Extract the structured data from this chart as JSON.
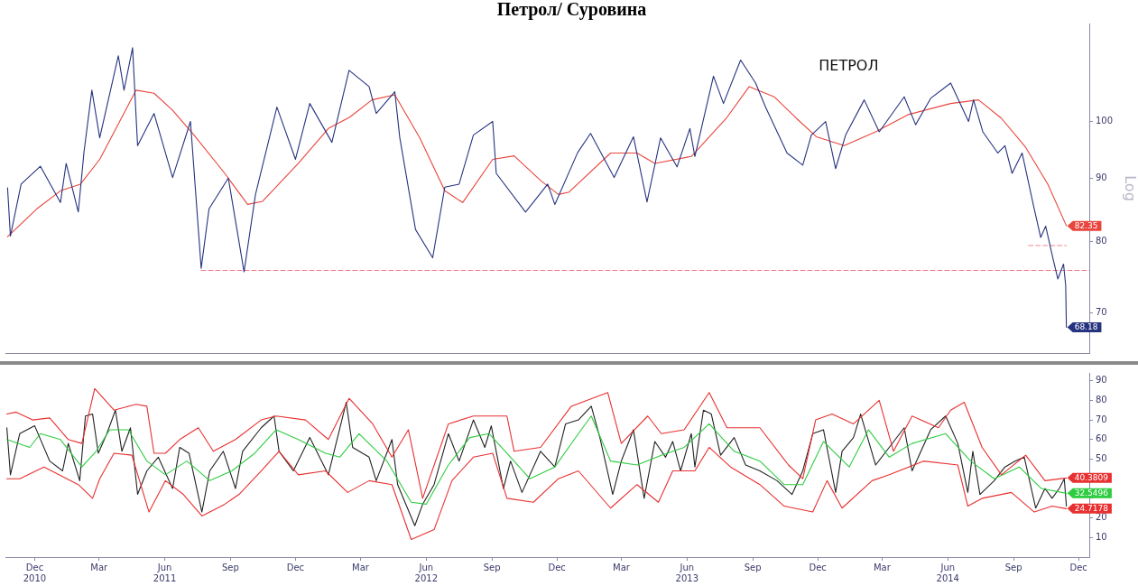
{
  "chart_data": [
    {
      "type": "line",
      "title": "Петрол/ Суровина",
      "ylabel": "Log",
      "log": true,
      "grid": false,
      "marker": "none",
      "tick_labels": "y",
      "xlim": [
        "2010-11-04",
        "2014-12-30"
      ],
      "ylim": [
        65,
        120
      ],
      "yticks": [
        70,
        80,
        90,
        100
      ],
      "annotations": [
        "ПЕТРОЛ"
      ],
      "series": [
        {
          "color": "#26337f",
          "x": [
            "2010-11-07",
            "2010-11-11",
            "2010-11-26",
            "2010-12-23",
            "2011-01-20",
            "2011-01-28",
            "2011-02-14",
            "2011-02-22",
            "2011-03-05",
            "2011-03-16",
            "2011-04-11",
            "2011-04-19",
            "2011-05-01",
            "2011-05-08",
            "2011-05-31",
            "2011-06-26",
            "2011-07-21",
            "2011-08-05",
            "2011-08-16",
            "2011-09-12",
            "2011-10-04",
            "2011-10-20",
            "2011-11-19",
            "2011-12-15",
            "2012-01-04",
            "2012-02-04",
            "2012-02-28",
            "2012-03-27",
            "2012-04-06",
            "2012-05-02",
            "2012-05-09",
            "2012-05-31",
            "2012-06-24",
            "2012-07-11",
            "2012-07-31",
            "2012-08-20",
            "2012-09-16",
            "2012-09-21",
            "2012-11-01",
            "2012-12-02",
            "2012-12-12",
            "2013-01-13",
            "2013-01-31",
            "2013-03-05",
            "2013-04-01",
            "2013-04-20",
            "2013-05-09",
            "2013-06-01",
            "2013-06-19",
            "2013-06-26",
            "2013-07-22",
            "2013-08-05",
            "2013-08-29",
            "2013-09-19",
            "2013-10-03",
            "2013-11-02",
            "2013-11-24",
            "2013-12-06",
            "2013-12-26",
            "2014-01-09",
            "2014-01-23",
            "2014-02-18",
            "2014-03-11",
            "2014-04-15",
            "2014-05-01",
            "2014-05-22",
            "2014-06-19",
            "2014-07-14",
            "2014-07-21",
            "2014-08-03",
            "2014-08-24",
            "2014-09-03",
            "2014-09-13",
            "2014-09-27",
            "2014-10-13",
            "2014-10-23",
            "2014-10-30",
            "2014-11-09",
            "2014-11-16",
            "2014-11-24",
            "2014-11-27",
            "2014-11-28"
          ],
          "values": [
            88.4,
            80.8,
            89,
            92,
            86,
            92.5,
            84.5,
            94.5,
            106,
            97,
            113,
            106,
            114.7,
            95.6,
            101.5,
            90.1,
            100,
            76.1,
            85,
            90,
            75.6,
            87.3,
            102.7,
            93.2,
            103.4,
            96.2,
            110,
            106.7,
            101.5,
            105.7,
            97,
            81.8,
            77.6,
            88.5,
            89,
            97.5,
            100,
            90.8,
            84.5,
            89,
            85.7,
            94.4,
            97.8,
            90.1,
            97.2,
            86.1,
            97,
            91.9,
            98.7,
            93.7,
            108.8,
            103.4,
            112.1,
            107.4,
            102.7,
            94.3,
            92.2,
            97.5,
            100,
            91.6,
            97.5,
            104.1,
            98.1,
            104.7,
            99.4,
            104.4,
            107.4,
            100,
            104.1,
            98.1,
            94.3,
            95.6,
            90.8,
            94.3,
            85.5,
            80.6,
            82.3,
            77.6,
            74.6,
            76.7,
            73.7,
            68.18
          ],
          "value_labels": [
            null,
            null,
            null,
            null,
            null,
            null,
            null,
            null,
            null,
            null,
            null,
            null,
            null,
            null,
            null,
            null,
            null,
            null,
            null,
            null,
            null,
            null,
            null,
            null,
            null,
            null,
            null,
            null,
            null,
            null,
            null,
            null,
            null,
            null,
            null,
            null,
            null,
            null,
            null,
            null,
            null,
            null,
            null,
            null,
            null,
            null,
            null,
            null,
            null,
            null,
            null,
            null,
            null,
            null,
            null,
            null,
            null,
            null,
            null,
            null,
            null,
            null,
            null,
            null,
            null,
            null,
            null,
            null,
            null,
            null,
            null,
            null,
            null,
            null,
            null,
            null,
            null,
            null,
            null,
            null,
            null,
            "68.18"
          ]
        },
        {
          "color": "#e8453c",
          "x": [
            "2010-11-07",
            "2010-12-18",
            "2011-01-20",
            "2011-02-17",
            "2011-03-16",
            "2011-05-06",
            "2011-05-31",
            "2011-06-26",
            "2011-07-26",
            "2011-09-07",
            "2011-10-09",
            "2011-10-30",
            "2011-12-19",
            "2012-01-30",
            "2012-02-29",
            "2012-03-31",
            "2012-05-02",
            "2012-06-06",
            "2012-07-11",
            "2012-08-05",
            "2012-09-16",
            "2012-10-16",
            "2012-11-22",
            "2012-12-17",
            "2013-01-01",
            "2013-02-28",
            "2013-04-06",
            "2013-05-01",
            "2013-06-21",
            "2013-08-09",
            "2013-09-10",
            "2013-10-15",
            "2013-11-15",
            "2013-12-13",
            "2014-01-21",
            "2014-03-06",
            "2014-04-21",
            "2014-06-19",
            "2014-07-28",
            "2014-08-29",
            "2014-10-02",
            "2014-11-02",
            "2014-11-28"
          ],
          "values": [
            80.7,
            85,
            87.9,
            89,
            93.2,
            106,
            105.4,
            102.1,
            97.5,
            90.8,
            85.7,
            86.2,
            92.5,
            98.7,
            100.8,
            104.1,
            105.1,
            97,
            87.9,
            86,
            93.2,
            93.8,
            89.6,
            87.3,
            87.7,
            94.3,
            94.3,
            92.5,
            93.7,
            100.6,
            106.7,
            104.7,
            100.6,
            97.2,
            95.6,
            98.1,
            101.3,
            103.4,
            104.1,
            100.6,
            95.3,
            89,
            82.35
          ],
          "value_labels": [
            null,
            null,
            null,
            null,
            null,
            null,
            null,
            null,
            null,
            null,
            null,
            null,
            null,
            null,
            null,
            null,
            null,
            null,
            null,
            null,
            null,
            null,
            null,
            null,
            null,
            null,
            null,
            null,
            null,
            null,
            null,
            null,
            null,
            null,
            null,
            null,
            null,
            null,
            null,
            null,
            null,
            null,
            "82.35"
          ]
        },
        {
          "color": "#f07a8a",
          "line_style": "dashed",
          "x": [
            "2011-08-05",
            "2014-12-30"
          ],
          "values": [
            75.8,
            75.8
          ]
        },
        {
          "color": "#f5a0a8",
          "line_style": "dashed",
          "x": [
            "2014-10-06",
            "2014-11-28"
          ],
          "values": [
            79.4,
            79.4
          ]
        }
      ]
    },
    {
      "type": "line",
      "grid": false,
      "marker": "none",
      "xlim": [
        "2010-11-04",
        "2014-12-30"
      ],
      "ylim": [
        0,
        94
      ],
      "yticks": [
        10,
        20,
        {
          "value": 30,
          "label": null
        },
        {
          "value": 40,
          "label": null
        },
        50,
        60,
        70,
        80,
        90
      ],
      "xticks": [
        {
          "value": "2010-12-15",
          "label": "Dec\n2010"
        },
        {
          "value": "2011-03-15",
          "label": "Mar"
        },
        {
          "value": "2011-06-15",
          "label": "Jun\n2011"
        },
        {
          "value": "2011-09-15",
          "label": "Sep"
        },
        {
          "value": "2011-12-15",
          "label": "Dec"
        },
        {
          "value": "2012-03-15",
          "label": "Mar"
        },
        {
          "value": "2012-06-15",
          "label": "Jun\n2012"
        },
        {
          "value": "2012-09-15",
          "label": "Sep"
        },
        {
          "value": "2012-12-15",
          "label": "Dec"
        },
        {
          "value": "2013-03-15",
          "label": "Mar"
        },
        {
          "value": "2013-06-15",
          "label": "Jun\n2013"
        },
        {
          "value": "2013-09-15",
          "label": "Sep"
        },
        {
          "value": "2013-12-15",
          "label": "Dec"
        },
        {
          "value": "2014-03-15",
          "label": "Mar"
        },
        {
          "value": "2014-06-15",
          "label": "Jun\n2014"
        },
        {
          "value": "2014-09-15",
          "label": "Sep"
        },
        {
          "value": "2014-12-15",
          "label": "Dec"
        }
      ],
      "series": [
        {
          "color": "#e83030",
          "x": [
            "2010-11-06",
            "2010-11-19",
            "2010-12-12",
            "2011-01-05",
            "2011-01-31",
            "2011-02-19",
            "2011-03-09",
            "2011-04-05",
            "2011-05-06",
            "2011-05-21",
            "2011-05-31",
            "2011-06-16",
            "2011-07-06",
            "2011-08-01",
            "2011-08-22",
            "2011-09-22",
            "2011-10-28",
            "2011-11-18",
            "2011-12-29",
            "2012-01-30",
            "2012-02-28",
            "2012-04-01",
            "2012-04-28",
            "2012-05-21",
            "2012-06-10",
            "2012-07-16",
            "2012-08-20",
            "2012-10-06",
            "2012-10-16",
            "2012-11-22",
            "2013-01-04",
            "2013-02-24",
            "2013-03-15",
            "2013-04-21",
            "2013-05-10",
            "2013-06-11",
            "2013-07-16",
            "2013-08-10",
            "2013-09-25",
            "2013-11-04",
            "2013-11-24",
            "2013-12-12",
            "2014-01-04",
            "2014-02-03",
            "2014-03-11",
            "2014-03-31",
            "2014-04-26",
            "2014-06-02",
            "2014-06-19",
            "2014-07-08",
            "2014-08-02",
            "2014-08-29",
            "2014-10-02",
            "2014-10-29",
            "2014-11-28"
          ],
          "values": [
            73,
            74,
            70,
            71,
            60,
            58,
            86,
            75,
            78,
            77,
            53,
            53,
            60,
            66,
            54,
            60,
            70,
            72,
            70,
            60,
            81,
            68,
            51,
            65,
            30,
            68,
            72,
            72,
            54,
            56,
            77,
            84,
            58,
            72,
            63,
            65,
            84,
            66,
            66,
            47,
            40,
            70,
            73,
            68,
            80,
            54,
            72,
            66,
            75,
            79,
            56,
            42,
            52,
            39,
            40.3809
          ],
          "value_labels": [
            null,
            null,
            null,
            null,
            null,
            null,
            null,
            null,
            null,
            null,
            null,
            null,
            null,
            null,
            null,
            null,
            null,
            null,
            null,
            null,
            null,
            null,
            null,
            null,
            null,
            null,
            null,
            null,
            null,
            null,
            null,
            null,
            null,
            null,
            null,
            null,
            null,
            null,
            null,
            null,
            null,
            null,
            null,
            null,
            null,
            null,
            null,
            null,
            null,
            null,
            null,
            null,
            null,
            null,
            "40.3809"
          ]
        },
        {
          "color": "#e83030",
          "x": [
            "2010-11-06",
            "2010-11-24",
            "2010-12-28",
            "2011-02-14",
            "2011-03-06",
            "2011-03-16",
            "2011-04-05",
            "2011-04-30",
            "2011-05-24",
            "2011-06-16",
            "2011-07-11",
            "2011-08-06",
            "2011-09-07",
            "2011-09-27",
            "2011-10-28",
            "2011-11-22",
            "2011-12-19",
            "2012-01-26",
            "2012-02-26",
            "2012-03-27",
            "2012-04-28",
            "2012-05-25",
            "2012-06-26",
            "2012-07-21",
            "2012-08-20",
            "2012-09-16",
            "2012-10-06",
            "2012-11-12",
            "2012-12-17",
            "2013-01-14",
            "2013-02-28",
            "2013-04-06",
            "2013-05-06",
            "2013-05-26",
            "2013-06-26",
            "2013-07-16",
            "2013-08-15",
            "2013-09-25",
            "2013-10-29",
            "2013-12-08",
            "2013-12-28",
            "2014-01-18",
            "2014-03-01",
            "2014-03-25",
            "2014-05-12",
            "2014-06-29",
            "2014-07-13",
            "2014-08-02",
            "2014-09-12",
            "2014-10-14",
            "2014-11-08",
            "2014-11-28"
          ],
          "values": [
            40,
            40,
            46,
            37,
            30,
            40,
            53,
            52,
            23,
            39,
            32,
            21,
            27,
            32,
            44,
            54,
            42,
            44,
            33,
            39,
            37,
            9,
            14,
            39,
            51,
            53,
            30,
            28,
            40,
            44,
            25,
            37,
            28,
            44,
            44,
            56,
            46,
            37,
            26,
            23,
            39,
            25,
            39,
            42,
            49,
            47,
            26,
            30,
            33,
            23,
            26,
            24.7178
          ],
          "value_labels": [
            null,
            null,
            null,
            null,
            null,
            null,
            null,
            null,
            null,
            null,
            null,
            null,
            null,
            null,
            null,
            null,
            null,
            null,
            null,
            null,
            null,
            null,
            null,
            null,
            null,
            null,
            null,
            null,
            null,
            null,
            null,
            null,
            null,
            null,
            null,
            null,
            null,
            null,
            null,
            null,
            null,
            null,
            null,
            null,
            null,
            null,
            null,
            null,
            null,
            null,
            null,
            "24.7178"
          ]
        },
        {
          "color": "#2ecc40",
          "x": [
            "2010-11-06",
            "2010-12-08",
            "2010-12-23",
            "2011-01-20",
            "2011-02-19",
            "2011-03-11",
            "2011-03-30",
            "2011-04-25",
            "2011-05-21",
            "2011-06-16",
            "2011-07-16",
            "2011-08-17",
            "2011-09-17",
            "2011-10-19",
            "2011-11-18",
            "2011-12-19",
            "2012-01-26",
            "2012-02-15",
            "2012-03-13",
            "2012-04-21",
            "2012-05-25",
            "2012-06-15",
            "2012-07-16",
            "2012-08-15",
            "2012-09-11",
            "2012-10-11",
            "2012-11-07",
            "2012-12-12",
            "2013-01-14",
            "2013-02-01",
            "2013-02-28",
            "2013-04-06",
            "2013-05-10",
            "2013-06-11",
            "2013-07-16",
            "2013-08-20",
            "2013-09-25",
            "2013-10-29",
            "2013-11-24",
            "2013-12-23",
            "2014-01-28",
            "2014-02-24",
            "2014-03-25",
            "2014-04-26",
            "2014-06-12",
            "2014-07-17",
            "2014-08-19",
            "2014-09-23",
            "2014-10-24",
            "2014-11-28"
          ],
          "values": [
            60,
            56,
            63,
            60,
            46,
            54,
            65,
            65,
            49,
            42,
            49,
            39,
            44,
            53,
            65,
            60,
            53,
            51,
            63,
            49,
            28,
            27,
            47,
            61,
            63,
            51,
            40,
            46,
            63,
            72,
            49,
            47,
            52,
            56,
            68,
            54,
            49,
            37,
            37,
            59,
            46,
            65,
            51,
            58,
            63,
            49,
            40,
            46,
            35,
            32.5496
          ],
          "value_labels": [
            null,
            null,
            null,
            null,
            null,
            null,
            null,
            null,
            null,
            null,
            null,
            null,
            null,
            null,
            null,
            null,
            null,
            null,
            null,
            null,
            null,
            null,
            null,
            null,
            null,
            null,
            null,
            null,
            null,
            null,
            null,
            null,
            null,
            null,
            null,
            null,
            null,
            null,
            null,
            null,
            null,
            null,
            null,
            null,
            null,
            null,
            null,
            null,
            null,
            "32.5496"
          ]
        },
        {
          "color": "#222222",
          "x": [
            "2010-11-06",
            "2010-11-11",
            "2010-11-24",
            "2010-12-15",
            "2011-01-05",
            "2011-01-23",
            "2011-01-31",
            "2011-02-16",
            "2011-02-24",
            "2011-03-06",
            "2011-03-14",
            "2011-03-26",
            "2011-04-07",
            "2011-04-16",
            "2011-04-28",
            "2011-05-08",
            "2011-05-21",
            "2011-06-06",
            "2011-06-26",
            "2011-07-06",
            "2011-07-19",
            "2011-08-06",
            "2011-08-17",
            "2011-09-05",
            "2011-09-22",
            "2011-10-02",
            "2011-10-28",
            "2011-11-15",
            "2011-11-22",
            "2011-12-12",
            "2012-01-04",
            "2012-01-30",
            "2012-02-24",
            "2012-03-04",
            "2012-03-27",
            "2012-04-06",
            "2012-04-28",
            "2012-05-06",
            "2012-05-30",
            "2012-06-10",
            "2012-06-26",
            "2012-07-16",
            "2012-07-31",
            "2012-08-20",
            "2012-09-05",
            "2012-09-14",
            "2012-10-01",
            "2012-10-11",
            "2012-10-27",
            "2012-11-22",
            "2012-12-12",
            "2012-12-27",
            "2013-01-14",
            "2013-02-01",
            "2013-02-13",
            "2013-03-03",
            "2013-03-15",
            "2013-04-01",
            "2013-04-16",
            "2013-05-01",
            "2013-05-16",
            "2013-05-26",
            "2013-06-06",
            "2013-06-21",
            "2013-06-26",
            "2013-07-08",
            "2013-07-19",
            "2013-08-01",
            "2013-08-20",
            "2013-09-05",
            "2013-09-25",
            "2013-10-19",
            "2013-11-09",
            "2013-11-24",
            "2013-12-08",
            "2013-12-23",
            "2014-01-09",
            "2014-01-18",
            "2014-02-03",
            "2014-02-13",
            "2014-03-06",
            "2014-03-25",
            "2014-04-15",
            "2014-04-26",
            "2014-05-22",
            "2014-06-12",
            "2014-06-29",
            "2014-07-13",
            "2014-07-20",
            "2014-07-30",
            "2014-08-19",
            "2014-09-03",
            "2014-09-17",
            "2014-09-30",
            "2014-10-16",
            "2014-10-29",
            "2014-11-08",
            "2014-11-18",
            "2014-11-25",
            "2014-11-28"
          ],
          "values": [
            66,
            42,
            63,
            67,
            49,
            44,
            58,
            39,
            72,
            73,
            53,
            63,
            75,
            54,
            66,
            32,
            44,
            51,
            35,
            56,
            53,
            23,
            44,
            54,
            35,
            54,
            66,
            72,
            54,
            44,
            61,
            42,
            79,
            56,
            51,
            39,
            60,
            37,
            16,
            27,
            37,
            63,
            49,
            70,
            56,
            67,
            35,
            49,
            33,
            54,
            46,
            68,
            70,
            77,
            61,
            32,
            49,
            65,
            30,
            59,
            51,
            59,
            44,
            63,
            46,
            75,
            73,
            52,
            61,
            47,
            44,
            39,
            32,
            44,
            63,
            65,
            33,
            54,
            61,
            73,
            47,
            56,
            66,
            44,
            65,
            72,
            58,
            33,
            54,
            32,
            39,
            46,
            49,
            51,
            25,
            35,
            30,
            35,
            40,
            26
          ]
        }
      ]
    }
  ]
}
